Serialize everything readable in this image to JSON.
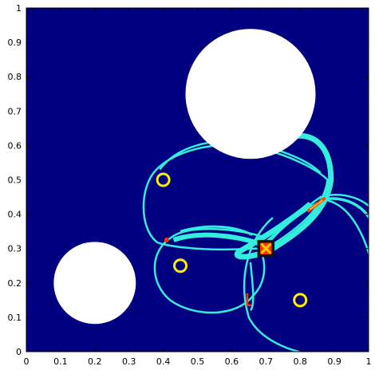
{
  "chart_data": {
    "type": "heatmap",
    "title": "",
    "xlabel": "",
    "ylabel": "",
    "xlim": [
      0,
      1
    ],
    "ylim": [
      0,
      1
    ],
    "xticks": [
      "0",
      "0.1",
      "0.2",
      "0.3",
      "0.4",
      "0.5",
      "0.6",
      "0.7",
      "0.8",
      "0.9",
      "1"
    ],
    "yticks": [
      "0",
      "0.1",
      "0.2",
      "0.3",
      "0.4",
      "0.5",
      "0.6",
      "0.7",
      "0.8",
      "0.9",
      "1"
    ],
    "background_color": "#000080",
    "obstacles": [
      {
        "cx": 0.2,
        "cy": 0.2,
        "r": 0.12
      },
      {
        "cx": 0.655,
        "cy": 0.75,
        "r": 0.19
      }
    ],
    "sensors": [
      {
        "x": 0.4,
        "y": 0.5
      },
      {
        "x": 0.45,
        "y": 0.25
      },
      {
        "x": 0.8,
        "y": 0.15
      }
    ],
    "target": {
      "x": 0.7,
      "y": 0.3
    },
    "high_value_regions": [
      {
        "x": 0.41,
        "y": 0.325
      },
      {
        "x": 0.65,
        "y": 0.15
      },
      {
        "x": 0.85,
        "y": 0.425
      }
    ],
    "colors": {
      "ring": "#33eedd",
      "sensor": "#ffee00",
      "hot": "#dd2200",
      "obstacle": "#ffffff",
      "target_box": "#111111",
      "target_mark": "#ffcc00"
    }
  }
}
